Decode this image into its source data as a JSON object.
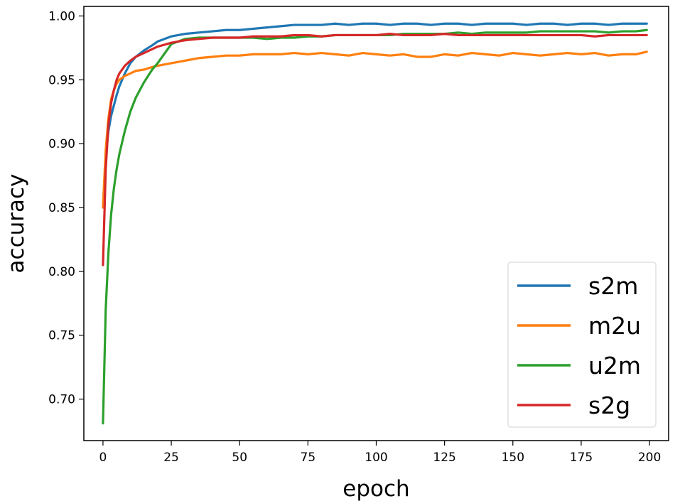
{
  "chart_data": {
    "type": "line",
    "title": "",
    "xlabel": "epoch",
    "ylabel": "accuracy",
    "xlim": [
      -7,
      207
    ],
    "ylim": [
      0.6675,
      1.0075
    ],
    "xticks": [
      0,
      25,
      50,
      75,
      100,
      125,
      150,
      175,
      200
    ],
    "xtick_labels": [
      "0",
      "25",
      "50",
      "75",
      "100",
      "125",
      "150",
      "175",
      "200"
    ],
    "yticks": [
      0.7,
      0.75,
      0.8,
      0.85,
      0.9,
      0.95,
      1.0
    ],
    "ytick_labels": [
      "0.70",
      "0.75",
      "0.80",
      "0.85",
      "0.90",
      "0.95",
      "1.00"
    ],
    "grid": false,
    "legend_position": "lower-right",
    "series": [
      {
        "name": "s2m",
        "color": "#1f77b4",
        "x": [
          0,
          1,
          2,
          3,
          4,
          5,
          6,
          8,
          10,
          12,
          15,
          18,
          20,
          25,
          30,
          35,
          40,
          45,
          50,
          55,
          60,
          65,
          70,
          75,
          80,
          85,
          90,
          95,
          100,
          105,
          110,
          115,
          120,
          125,
          130,
          135,
          140,
          145,
          150,
          155,
          160,
          165,
          170,
          175,
          180,
          185,
          190,
          195,
          199
        ],
        "values": [
          0.85,
          0.89,
          0.91,
          0.922,
          0.93,
          0.938,
          0.945,
          0.955,
          0.963,
          0.968,
          0.973,
          0.977,
          0.98,
          0.984,
          0.986,
          0.987,
          0.988,
          0.989,
          0.989,
          0.99,
          0.991,
          0.992,
          0.993,
          0.993,
          0.993,
          0.994,
          0.993,
          0.994,
          0.994,
          0.993,
          0.994,
          0.994,
          0.993,
          0.994,
          0.994,
          0.993,
          0.994,
          0.994,
          0.994,
          0.993,
          0.994,
          0.994,
          0.993,
          0.994,
          0.994,
          0.993,
          0.994,
          0.994,
          0.994
        ]
      },
      {
        "name": "m2u",
        "color": "#ff7f0e",
        "x": [
          0,
          1,
          2,
          3,
          4,
          5,
          6,
          8,
          10,
          12,
          15,
          18,
          20,
          25,
          30,
          35,
          40,
          45,
          50,
          55,
          60,
          65,
          70,
          75,
          80,
          85,
          90,
          95,
          100,
          105,
          110,
          115,
          120,
          125,
          130,
          135,
          140,
          145,
          150,
          155,
          160,
          165,
          170,
          175,
          180,
          185,
          190,
          195,
          199
        ],
        "values": [
          0.85,
          0.895,
          0.92,
          0.935,
          0.942,
          0.947,
          0.95,
          0.953,
          0.955,
          0.957,
          0.958,
          0.96,
          0.961,
          0.963,
          0.965,
          0.967,
          0.968,
          0.969,
          0.969,
          0.97,
          0.97,
          0.97,
          0.971,
          0.97,
          0.971,
          0.97,
          0.969,
          0.971,
          0.97,
          0.969,
          0.97,
          0.968,
          0.968,
          0.97,
          0.969,
          0.971,
          0.97,
          0.969,
          0.971,
          0.97,
          0.969,
          0.97,
          0.971,
          0.97,
          0.971,
          0.969,
          0.97,
          0.97,
          0.972
        ]
      },
      {
        "name": "u2m",
        "color": "#2ca02c",
        "x": [
          0,
          1,
          2,
          3,
          4,
          5,
          6,
          8,
          10,
          12,
          15,
          18,
          20,
          25,
          30,
          35,
          40,
          45,
          50,
          55,
          60,
          65,
          70,
          75,
          80,
          85,
          90,
          95,
          100,
          105,
          110,
          115,
          120,
          125,
          130,
          135,
          140,
          145,
          150,
          155,
          160,
          165,
          170,
          175,
          180,
          185,
          190,
          195,
          199
        ],
        "values": [
          0.681,
          0.77,
          0.815,
          0.845,
          0.865,
          0.88,
          0.892,
          0.91,
          0.925,
          0.936,
          0.948,
          0.958,
          0.963,
          0.978,
          0.982,
          0.983,
          0.983,
          0.983,
          0.983,
          0.983,
          0.982,
          0.983,
          0.983,
          0.984,
          0.984,
          0.985,
          0.985,
          0.985,
          0.985,
          0.985,
          0.986,
          0.986,
          0.986,
          0.986,
          0.987,
          0.986,
          0.987,
          0.987,
          0.987,
          0.987,
          0.988,
          0.988,
          0.988,
          0.988,
          0.988,
          0.987,
          0.988,
          0.988,
          0.989
        ]
      },
      {
        "name": "s2g",
        "color": "#d62728",
        "x": [
          0,
          1,
          2,
          3,
          4,
          5,
          6,
          8,
          10,
          12,
          15,
          18,
          20,
          25,
          30,
          35,
          40,
          45,
          50,
          55,
          60,
          65,
          70,
          75,
          80,
          85,
          90,
          95,
          100,
          105,
          110,
          115,
          120,
          125,
          130,
          135,
          140,
          145,
          150,
          155,
          160,
          165,
          170,
          175,
          180,
          185,
          190,
          195,
          199
        ],
        "values": [
          0.805,
          0.88,
          0.915,
          0.932,
          0.942,
          0.95,
          0.955,
          0.961,
          0.965,
          0.968,
          0.971,
          0.974,
          0.976,
          0.979,
          0.981,
          0.982,
          0.983,
          0.983,
          0.983,
          0.984,
          0.984,
          0.984,
          0.985,
          0.985,
          0.984,
          0.985,
          0.985,
          0.985,
          0.985,
          0.986,
          0.985,
          0.985,
          0.985,
          0.986,
          0.985,
          0.985,
          0.985,
          0.985,
          0.985,
          0.985,
          0.985,
          0.985,
          0.985,
          0.985,
          0.984,
          0.985,
          0.985,
          0.985,
          0.985
        ]
      }
    ]
  }
}
